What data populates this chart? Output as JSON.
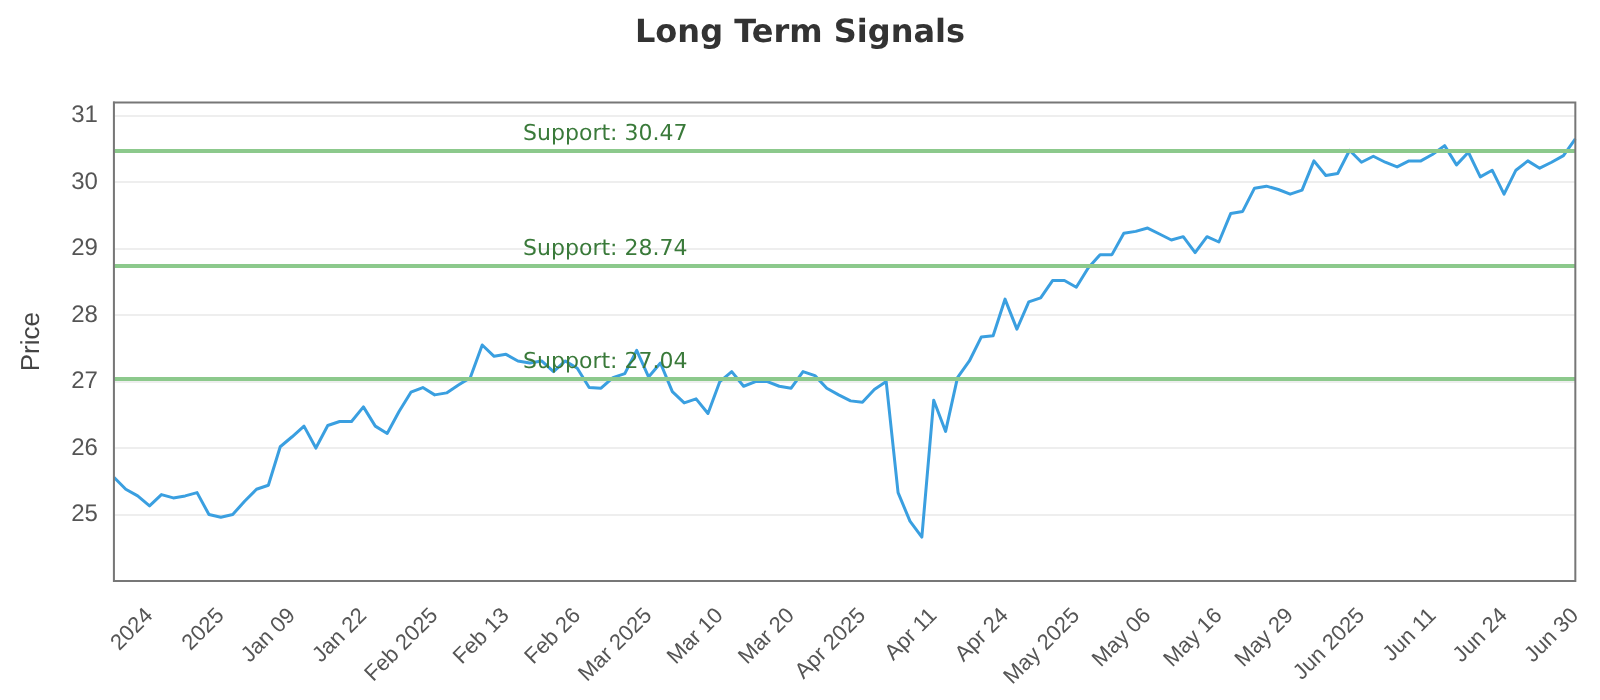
{
  "chart_data": {
    "type": "line",
    "title": "Long Term Signals",
    "ylabel": "Price",
    "categories": [
      null,
      null,
      null,
      "2024",
      null,
      null,
      null,
      null,
      null,
      "2025",
      null,
      null,
      null,
      null,
      null,
      "Jan 09",
      null,
      null,
      null,
      null,
      null,
      "Jan 22",
      null,
      null,
      null,
      null,
      null,
      "Feb 2025",
      null,
      null,
      null,
      null,
      null,
      "Feb 13",
      null,
      null,
      null,
      null,
      null,
      "Feb 26",
      null,
      null,
      null,
      null,
      null,
      "Mar 2025",
      null,
      null,
      null,
      null,
      null,
      "Mar 10",
      null,
      null,
      null,
      null,
      null,
      "Mar 20",
      null,
      null,
      null,
      null,
      null,
      "Apr 2025",
      null,
      null,
      null,
      null,
      null,
      "Apr 11",
      null,
      null,
      null,
      null,
      null,
      "Apr 24",
      null,
      null,
      null,
      null,
      null,
      "May 2025",
      null,
      null,
      null,
      null,
      null,
      "May 06",
      null,
      null,
      null,
      null,
      null,
      "May 16",
      null,
      null,
      null,
      null,
      null,
      "May 29",
      null,
      null,
      null,
      null,
      null,
      "Jun 2025",
      null,
      null,
      null,
      null,
      null,
      "Jun 11",
      null,
      null,
      null,
      null,
      null,
      "Jun 24",
      null,
      null,
      null,
      null,
      null,
      "Jun 30"
    ],
    "series": [
      {
        "color": "#3a9fe0",
        "values": [
          25.56,
          25.38,
          25.28,
          25.13,
          25.3,
          25.25,
          25.28,
          25.33,
          25.0,
          24.96,
          25.0,
          25.2,
          25.38,
          25.44,
          26.02,
          26.17,
          26.33,
          26.0,
          26.34,
          26.4,
          26.4,
          26.62,
          26.33,
          26.22,
          26.55,
          26.84,
          26.91,
          26.8,
          26.83,
          26.95,
          27.06,
          27.55,
          27.38,
          27.41,
          27.31,
          27.28,
          27.31,
          27.15,
          27.31,
          27.2,
          26.91,
          26.9,
          27.06,
          27.12,
          27.47,
          27.07,
          27.28,
          26.85,
          26.68,
          26.74,
          26.52,
          27.0,
          27.15,
          26.93,
          27.0,
          27.0,
          26.93,
          26.9,
          27.15,
          27.09,
          26.9,
          26.8,
          26.71,
          26.69,
          26.88,
          27.0,
          25.33,
          24.9,
          24.66,
          26.72,
          26.25,
          27.06,
          27.31,
          27.67,
          27.69,
          28.24,
          27.79,
          28.2,
          28.26,
          28.52,
          28.52,
          28.42,
          28.71,
          28.91,
          28.91,
          29.23,
          29.26,
          29.31,
          29.22,
          29.13,
          29.18,
          28.94,
          29.18,
          29.1,
          29.53,
          29.56,
          29.91,
          29.94,
          29.89,
          29.82,
          29.88,
          30.32,
          30.1,
          30.13,
          30.48,
          30.3,
          30.39,
          30.3,
          30.23,
          30.32,
          30.32,
          30.42,
          30.55,
          30.26,
          30.45,
          30.08,
          30.18,
          29.82,
          30.18,
          30.32,
          30.21,
          30.3,
          30.4,
          30.65
        ]
      }
    ],
    "ylim": [
      24,
      31.2
    ],
    "yticks": [
      25,
      26,
      27,
      28,
      29,
      30,
      31
    ],
    "grid": "y",
    "legend": false,
    "marker": "none",
    "line_style": "solid",
    "ref_lines": [
      {
        "axis": "y",
        "value": 30.47,
        "label": "Support: 30.47",
        "color": "#8cc98c"
      },
      {
        "axis": "y",
        "value": 28.74,
        "label": "Support: 28.74",
        "color": "#8cc98c"
      },
      {
        "axis": "y",
        "value": 27.04,
        "label": "Support: 27.04",
        "color": "#8cc98c"
      }
    ]
  }
}
